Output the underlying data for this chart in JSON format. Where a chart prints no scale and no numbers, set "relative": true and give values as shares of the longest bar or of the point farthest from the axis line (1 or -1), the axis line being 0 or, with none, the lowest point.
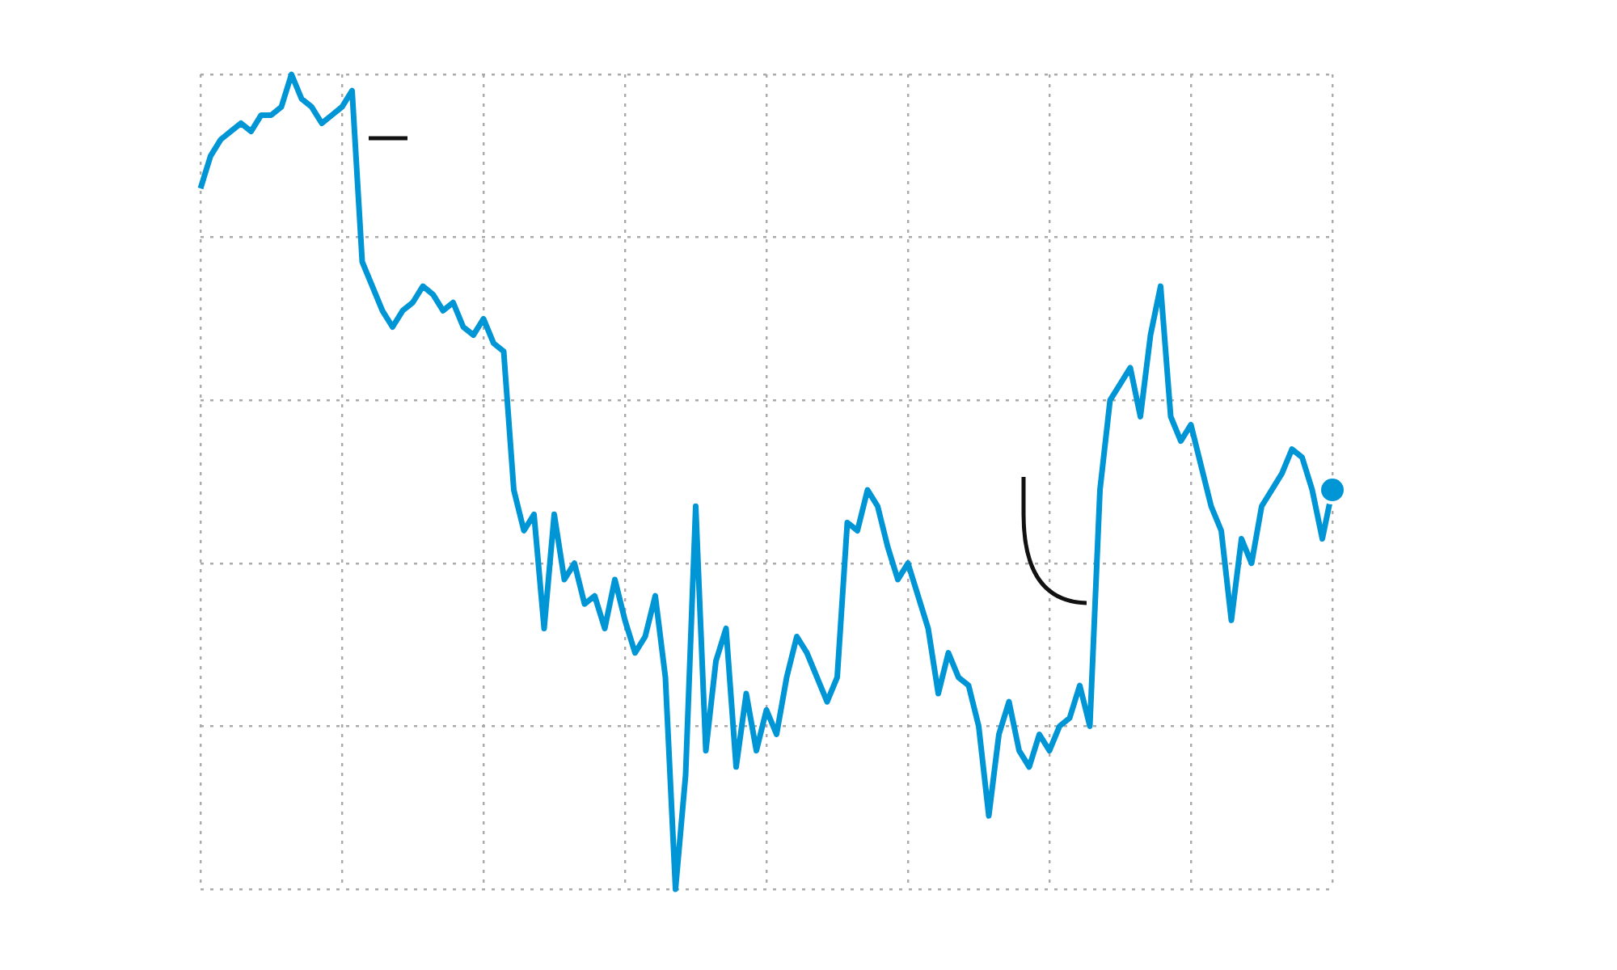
{
  "chart_data": {
    "type": "line",
    "relative": true,
    "grid": true,
    "categories": [
      null,
      null,
      null,
      null,
      null,
      null,
      null,
      null,
      null,
      null,
      null,
      null,
      null,
      null,
      null,
      null,
      null,
      null,
      null,
      null,
      null,
      null,
      null,
      null,
      null,
      null,
      null,
      null,
      null,
      null,
      null,
      null,
      null,
      null,
      null,
      null,
      null,
      null,
      null,
      null,
      null,
      null,
      null,
      null,
      null,
      null,
      null,
      null,
      null,
      null,
      null,
      null,
      null,
      null,
      null,
      null,
      null,
      null,
      null,
      null,
      null,
      null,
      null,
      null,
      null,
      null,
      null,
      null,
      null,
      null,
      null,
      null,
      null,
      null,
      null,
      null,
      null,
      null,
      null,
      null,
      null,
      null,
      null,
      null,
      null,
      null,
      null,
      null,
      null,
      null,
      null,
      null,
      null,
      null,
      null,
      null,
      null,
      null,
      null,
      null,
      null,
      null,
      null,
      null,
      null,
      null,
      null,
      null,
      null,
      null,
      null,
      null,
      null
    ],
    "series": [
      {
        "color": "#0096d6",
        "values": [
          0.86,
          0.9,
          0.92,
          0.93,
          0.94,
          0.93,
          0.95,
          0.95,
          0.96,
          1.0,
          0.97,
          0.96,
          0.94,
          0.95,
          0.96,
          0.98,
          0.77,
          0.74,
          0.71,
          0.69,
          0.71,
          0.72,
          0.74,
          0.73,
          0.71,
          0.72,
          0.69,
          0.68,
          0.7,
          0.67,
          0.66,
          0.49,
          0.44,
          0.46,
          0.32,
          0.46,
          0.38,
          0.4,
          0.35,
          0.36,
          0.32,
          0.38,
          0.33,
          0.29,
          0.31,
          0.36,
          0.26,
          0.0,
          0.14,
          0.47,
          0.17,
          0.28,
          0.32,
          0.15,
          0.24,
          0.17,
          0.22,
          0.19,
          0.26,
          0.31,
          0.29,
          0.26,
          0.23,
          0.26,
          0.45,
          0.44,
          0.49,
          0.47,
          0.42,
          0.38,
          0.4,
          0.36,
          0.32,
          0.24,
          0.29,
          0.26,
          0.25,
          0.2,
          0.09,
          0.19,
          0.23,
          0.17,
          0.15,
          0.19,
          0.17,
          0.2,
          0.21,
          0.25,
          0.2,
          0.49,
          0.6,
          0.62,
          0.64,
          0.58,
          0.68,
          0.74,
          0.58,
          0.55,
          0.57,
          0.52,
          0.47,
          0.44,
          0.33,
          0.43,
          0.4,
          0.47,
          0.49,
          0.51,
          0.54,
          0.53,
          0.49,
          0.43,
          0.49
        ]
      }
    ]
  }
}
